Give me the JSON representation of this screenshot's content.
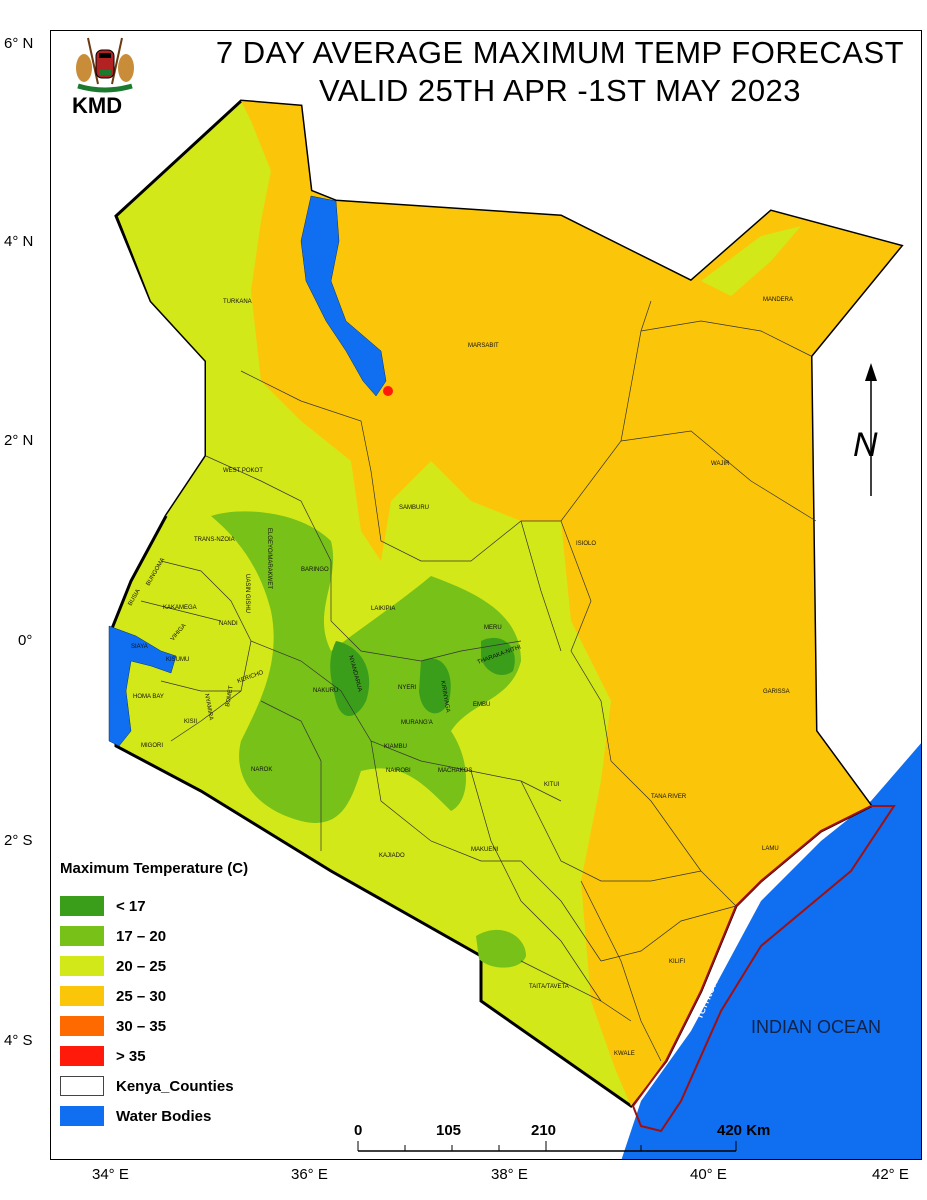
{
  "title": {
    "line1": "7 DAY AVERAGE MAXIMUM TEMP FORECAST",
    "line2": "VALID 25TH APR -1ST MAY 2023"
  },
  "logo": {
    "text": "KMD"
  },
  "axes": {
    "lat_labels": [
      "6° N",
      "4° N",
      "2° N",
      "0°",
      "2° S",
      "4° S"
    ],
    "lon_labels": [
      "34° E",
      "36° E",
      "38° E",
      "40° E",
      "42° E"
    ]
  },
  "north_arrow": {
    "label": "N"
  },
  "ocean_label": "INDIAN OCEAN",
  "boundary_label": "Territorial Boundary",
  "scale_bar": {
    "labels": [
      "0",
      "105",
      "210",
      "420 Km"
    ]
  },
  "legend": {
    "title": "Maximum Temperature (C)",
    "items": [
      {
        "label": "< 17",
        "color": "#3a9e1a"
      },
      {
        "label": "17 – 20",
        "color": "#77c119"
      },
      {
        "label": "20 – 25",
        "color": "#d3e818"
      },
      {
        "label": "25 – 30",
        "color": "#fbc60a"
      },
      {
        "label": "30 – 35",
        "color": "#ff6a00"
      },
      {
        "label": "> 35",
        "color": "#ff1a0a"
      },
      {
        "label": "Kenya_Counties",
        "color": "#ffffff"
      },
      {
        "label": "Water Bodies",
        "color": "#0f6ff0"
      }
    ]
  },
  "counties": [
    "TURKANA",
    "MARSABIT",
    "MANDERA",
    "WAJIR",
    "WEST POKOT",
    "SAMBURU",
    "ISIOLO",
    "TRANS-NZOIA",
    "ELGEYO/MARAKWET",
    "BARINGO",
    "BUNGOMA",
    "UASIN GISHU",
    "BUSIA",
    "KAKAMEGA",
    "NANDI",
    "LAIKIPIA",
    "MERU",
    "SIAYA",
    "VIHIGA",
    "KISUMU",
    "THARAKA-NITHI",
    "KERICHO",
    "NYANDARUA",
    "NYERI",
    "KIRINYAGA",
    "HOMA BAY",
    "NAKURU",
    "EMBU",
    "GARISSA",
    "KISII",
    "BOMET",
    "NYAMIRA",
    "MURANG'A",
    "MIGORI",
    "KIAMBU",
    "NAROK",
    "NAIROBI",
    "MACHAKOS",
    "KITUI",
    "TANA RIVER",
    "LAMU",
    "KAJIADO",
    "MAKUENI",
    "KILIFI",
    "TAITA/TAVETA",
    "KWALE"
  ]
}
